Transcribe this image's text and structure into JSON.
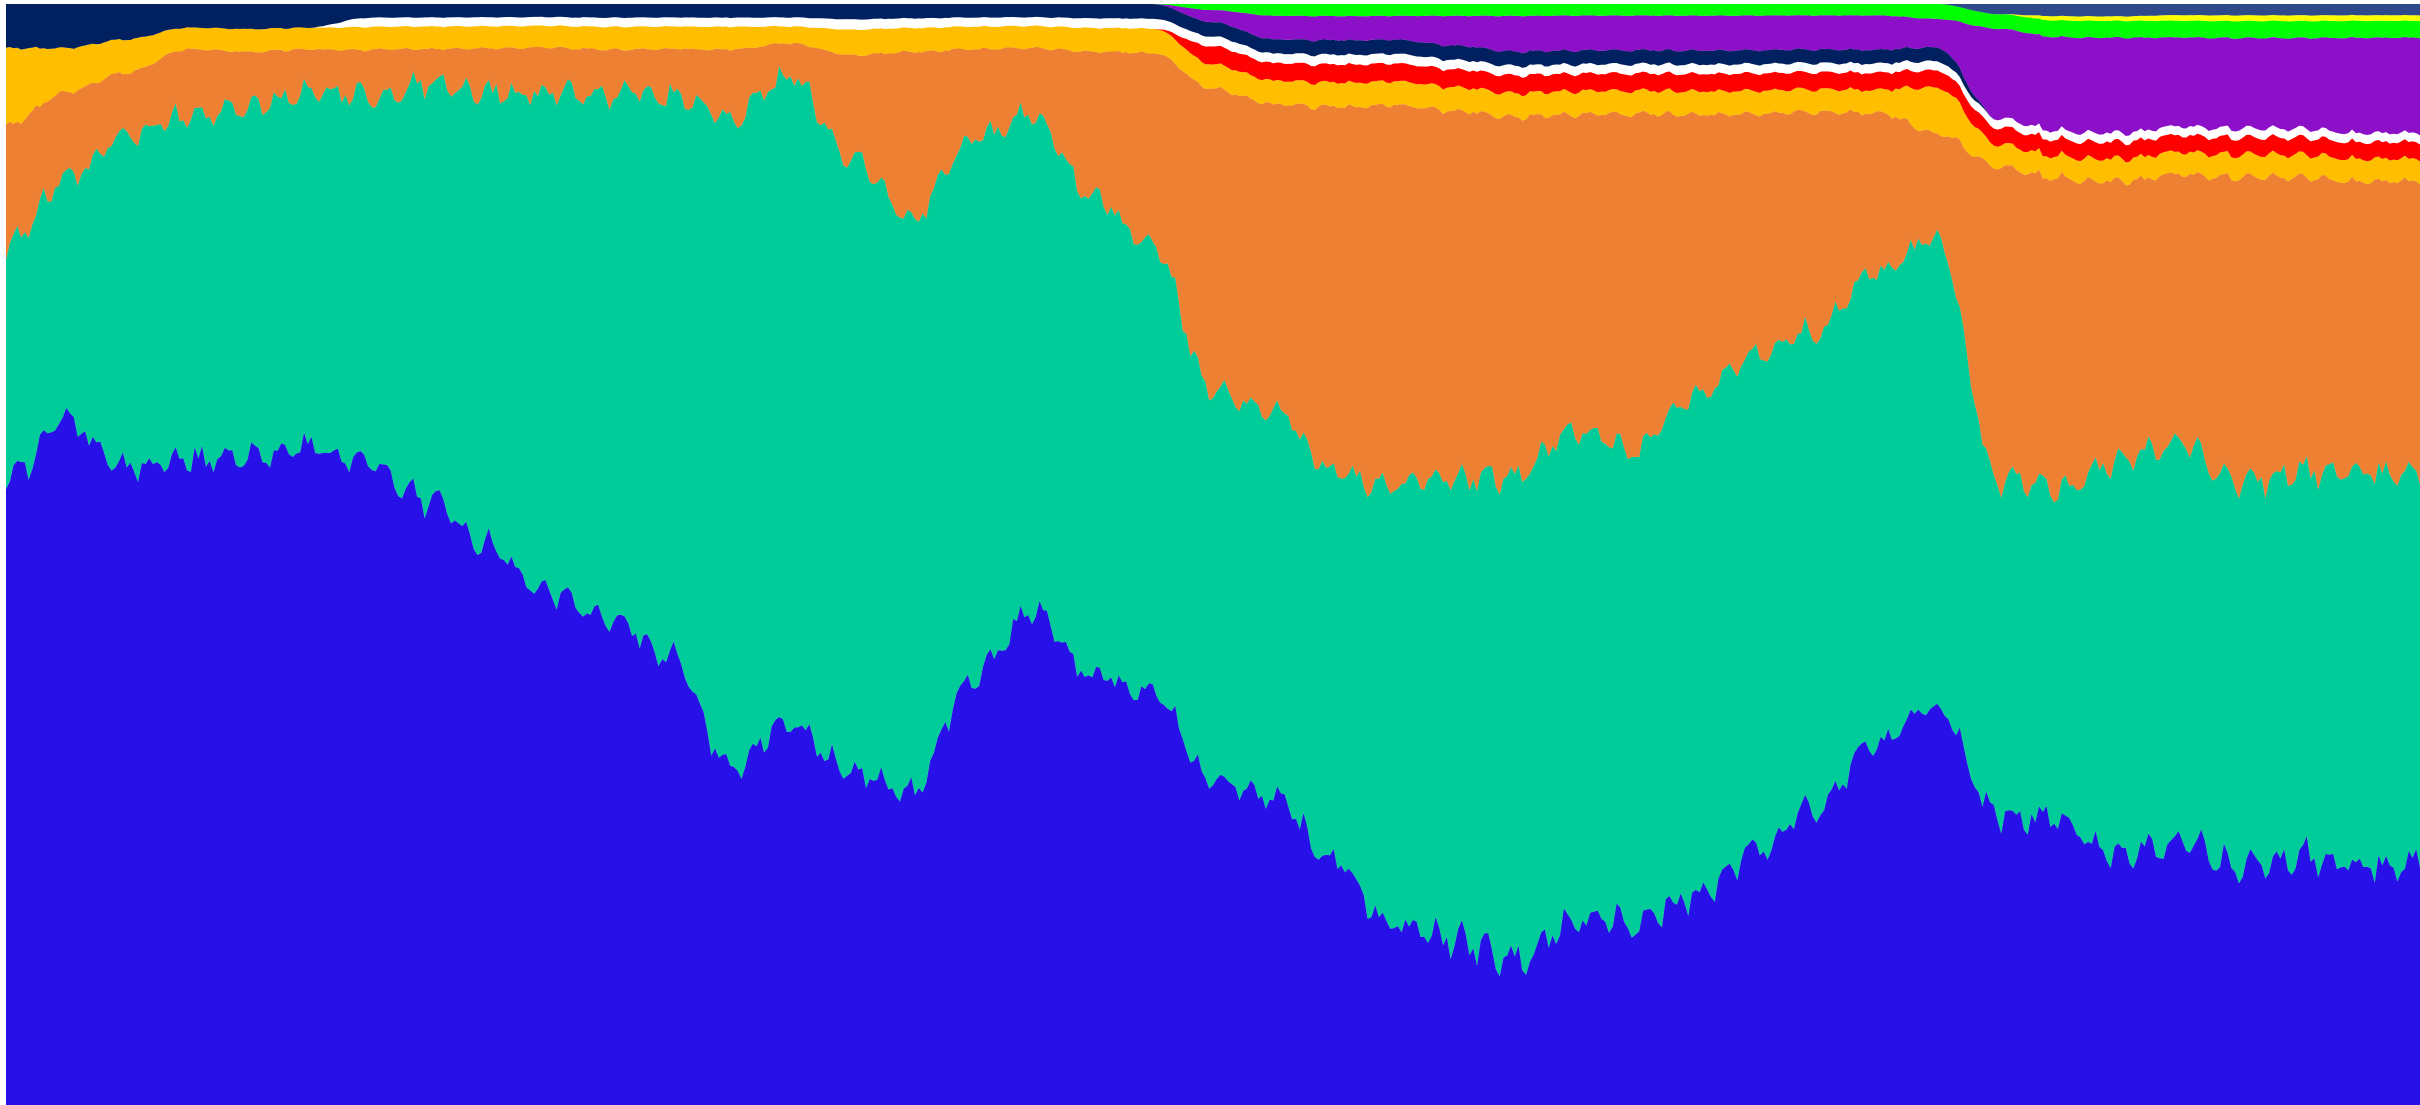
{
  "chart_data": {
    "type": "area",
    "stacked": true,
    "normalized": true,
    "title": "",
    "xlabel": "",
    "ylabel": "",
    "x": [
      0,
      25,
      50,
      75,
      100,
      125,
      150,
      175,
      200,
      225,
      250,
      275,
      300,
      325,
      350,
      375,
      400,
      425,
      450,
      475,
      500,
      525,
      550,
      575,
      600,
      625,
      650,
      675,
      700,
      725,
      750,
      775,
      800,
      825,
      850,
      875,
      900,
      925,
      950,
      975,
      1000
    ],
    "ylim": [
      0,
      100
    ],
    "grid": false,
    "legend": "none",
    "series": [
      {
        "color": "#2810e8",
        "values": [
          57,
          62,
          58,
          60,
          57,
          61,
          56,
          54,
          50,
          47,
          43,
          40,
          30,
          34,
          26,
          26,
          38,
          45,
          36,
          34,
          27,
          26,
          20,
          15,
          14,
          12,
          16,
          16,
          18,
          22,
          26,
          32,
          35,
          26,
          26,
          22,
          24,
          21,
          22,
          21,
          22
        ]
      },
      {
        "color": "#00cc99",
        "values": [
          21,
          22,
          30,
          32,
          31,
          33,
          32,
          37,
          41,
          46,
          46,
          50,
          57,
          58,
          48,
          48,
          48,
          45,
          40,
          37,
          32,
          33,
          32,
          37,
          39,
          41,
          42,
          41,
          43,
          43,
          42,
          41,
          41,
          30,
          30,
          35,
          36,
          34,
          34,
          35,
          35
        ]
      },
      {
        "color": "#ee8033",
        "values": [
          11,
          8,
          6,
          6,
          5,
          4,
          4,
          3,
          4,
          4,
          4,
          4,
          6,
          3,
          8,
          14,
          8,
          6,
          12,
          16,
          25,
          26,
          30,
          32,
          31,
          30,
          27,
          29,
          24,
          21,
          19,
          14,
          9,
          28,
          28,
          25,
          24,
          27,
          26,
          26,
          26
        ]
      },
      {
        "color": "#ffbf00",
        "values": [
          7,
          4,
          3,
          2,
          2,
          2,
          2,
          2,
          2,
          2,
          2,
          2,
          2,
          1.5,
          2,
          2,
          2,
          2,
          2,
          2,
          2,
          2,
          2,
          2,
          2,
          2,
          2,
          2,
          2,
          2,
          2,
          2,
          4,
          2,
          2,
          2,
          2,
          2,
          2,
          2,
          2
        ]
      },
      {
        "color": "#ff0000",
        "values": [
          0,
          0,
          0,
          0,
          0,
          0,
          0,
          0,
          0,
          0,
          0,
          0,
          0,
          0,
          0,
          0,
          0,
          0,
          0,
          0,
          1.5,
          1.5,
          1.5,
          1.5,
          1.5,
          1.5,
          1.5,
          1.5,
          1.5,
          1.5,
          1.5,
          1.5,
          1.5,
          1.5,
          1.5,
          1.5,
          1.5,
          1.5,
          1.5,
          1.5,
          1.5
        ]
      },
      {
        "color": "#ffffff",
        "values": [
          0,
          0,
          0,
          0,
          0,
          0,
          0.8,
          0.8,
          0.8,
          0.8,
          0.8,
          0.8,
          0.8,
          0.8,
          0.8,
          0.8,
          0.8,
          0.8,
          0.8,
          0.8,
          0.8,
          0.8,
          0.8,
          0.8,
          0.8,
          0.8,
          0.8,
          0.8,
          0.8,
          0.8,
          0.8,
          0.8,
          0.8,
          0.8,
          0.8,
          0.8,
          0.8,
          0.8,
          0.8,
          0.8,
          0.8
        ]
      },
      {
        "color": "#002060",
        "values": [
          4,
          4,
          3.2,
          2.2,
          2.2,
          2.2,
          1.2,
          1.2,
          1.2,
          1.2,
          1.2,
          1.2,
          1.2,
          1.2,
          1.2,
          1.2,
          1.2,
          1.2,
          1.2,
          1.2,
          1.2,
          1.2,
          1.2,
          1.2,
          1.2,
          1.2,
          1.2,
          1.2,
          1.2,
          1.2,
          1.2,
          1.2,
          1.2,
          0,
          0,
          0,
          0,
          0,
          0,
          0,
          0
        ]
      },
      {
        "color": "#8b10c8",
        "values": [
          0,
          0,
          0,
          0,
          0,
          0,
          0,
          0,
          0,
          0,
          0,
          0,
          0,
          0,
          0,
          0,
          0,
          0,
          0,
          0,
          1,
          2,
          2,
          2,
          2.5,
          3,
          3,
          3,
          3,
          3,
          3,
          3,
          2.5,
          8,
          8.5,
          8.5,
          8,
          8,
          8,
          8.5,
          8.5
        ]
      },
      {
        "color": "#00ff00",
        "values": [
          0,
          0,
          0,
          0,
          0,
          0,
          0,
          0,
          0,
          0,
          0,
          0,
          0,
          0,
          0,
          0,
          0,
          0,
          0,
          0,
          0.5,
          1,
          1,
          1,
          1,
          1,
          1,
          1,
          1,
          1,
          1,
          1,
          1.3,
          1.3,
          1.5,
          1.5,
          1.5,
          1.5,
          1.5,
          1.5,
          1.5
        ]
      },
      {
        "color": "#ffff00",
        "values": [
          0,
          0,
          0,
          0,
          0,
          0,
          0,
          0,
          0,
          0,
          0,
          0,
          0,
          0,
          0,
          0,
          0,
          0,
          0,
          0,
          0,
          0,
          0,
          0,
          0,
          0,
          0,
          0,
          0,
          0,
          0,
          0,
          0,
          0,
          0.4,
          0.4,
          0.5,
          0.5,
          0.5,
          0.5,
          0.5
        ]
      },
      {
        "color": "#2e4a8a",
        "values": [
          0,
          0,
          0,
          0,
          0,
          0,
          0,
          0,
          0,
          0,
          0,
          0,
          0,
          0,
          0,
          0,
          0,
          0,
          0,
          0,
          0,
          0,
          0,
          0,
          0,
          0,
          0,
          0,
          0,
          0,
          0,
          0,
          0,
          0.9,
          1.1,
          1.1,
          1,
          1,
          1,
          1,
          1
        ]
      }
    ]
  }
}
